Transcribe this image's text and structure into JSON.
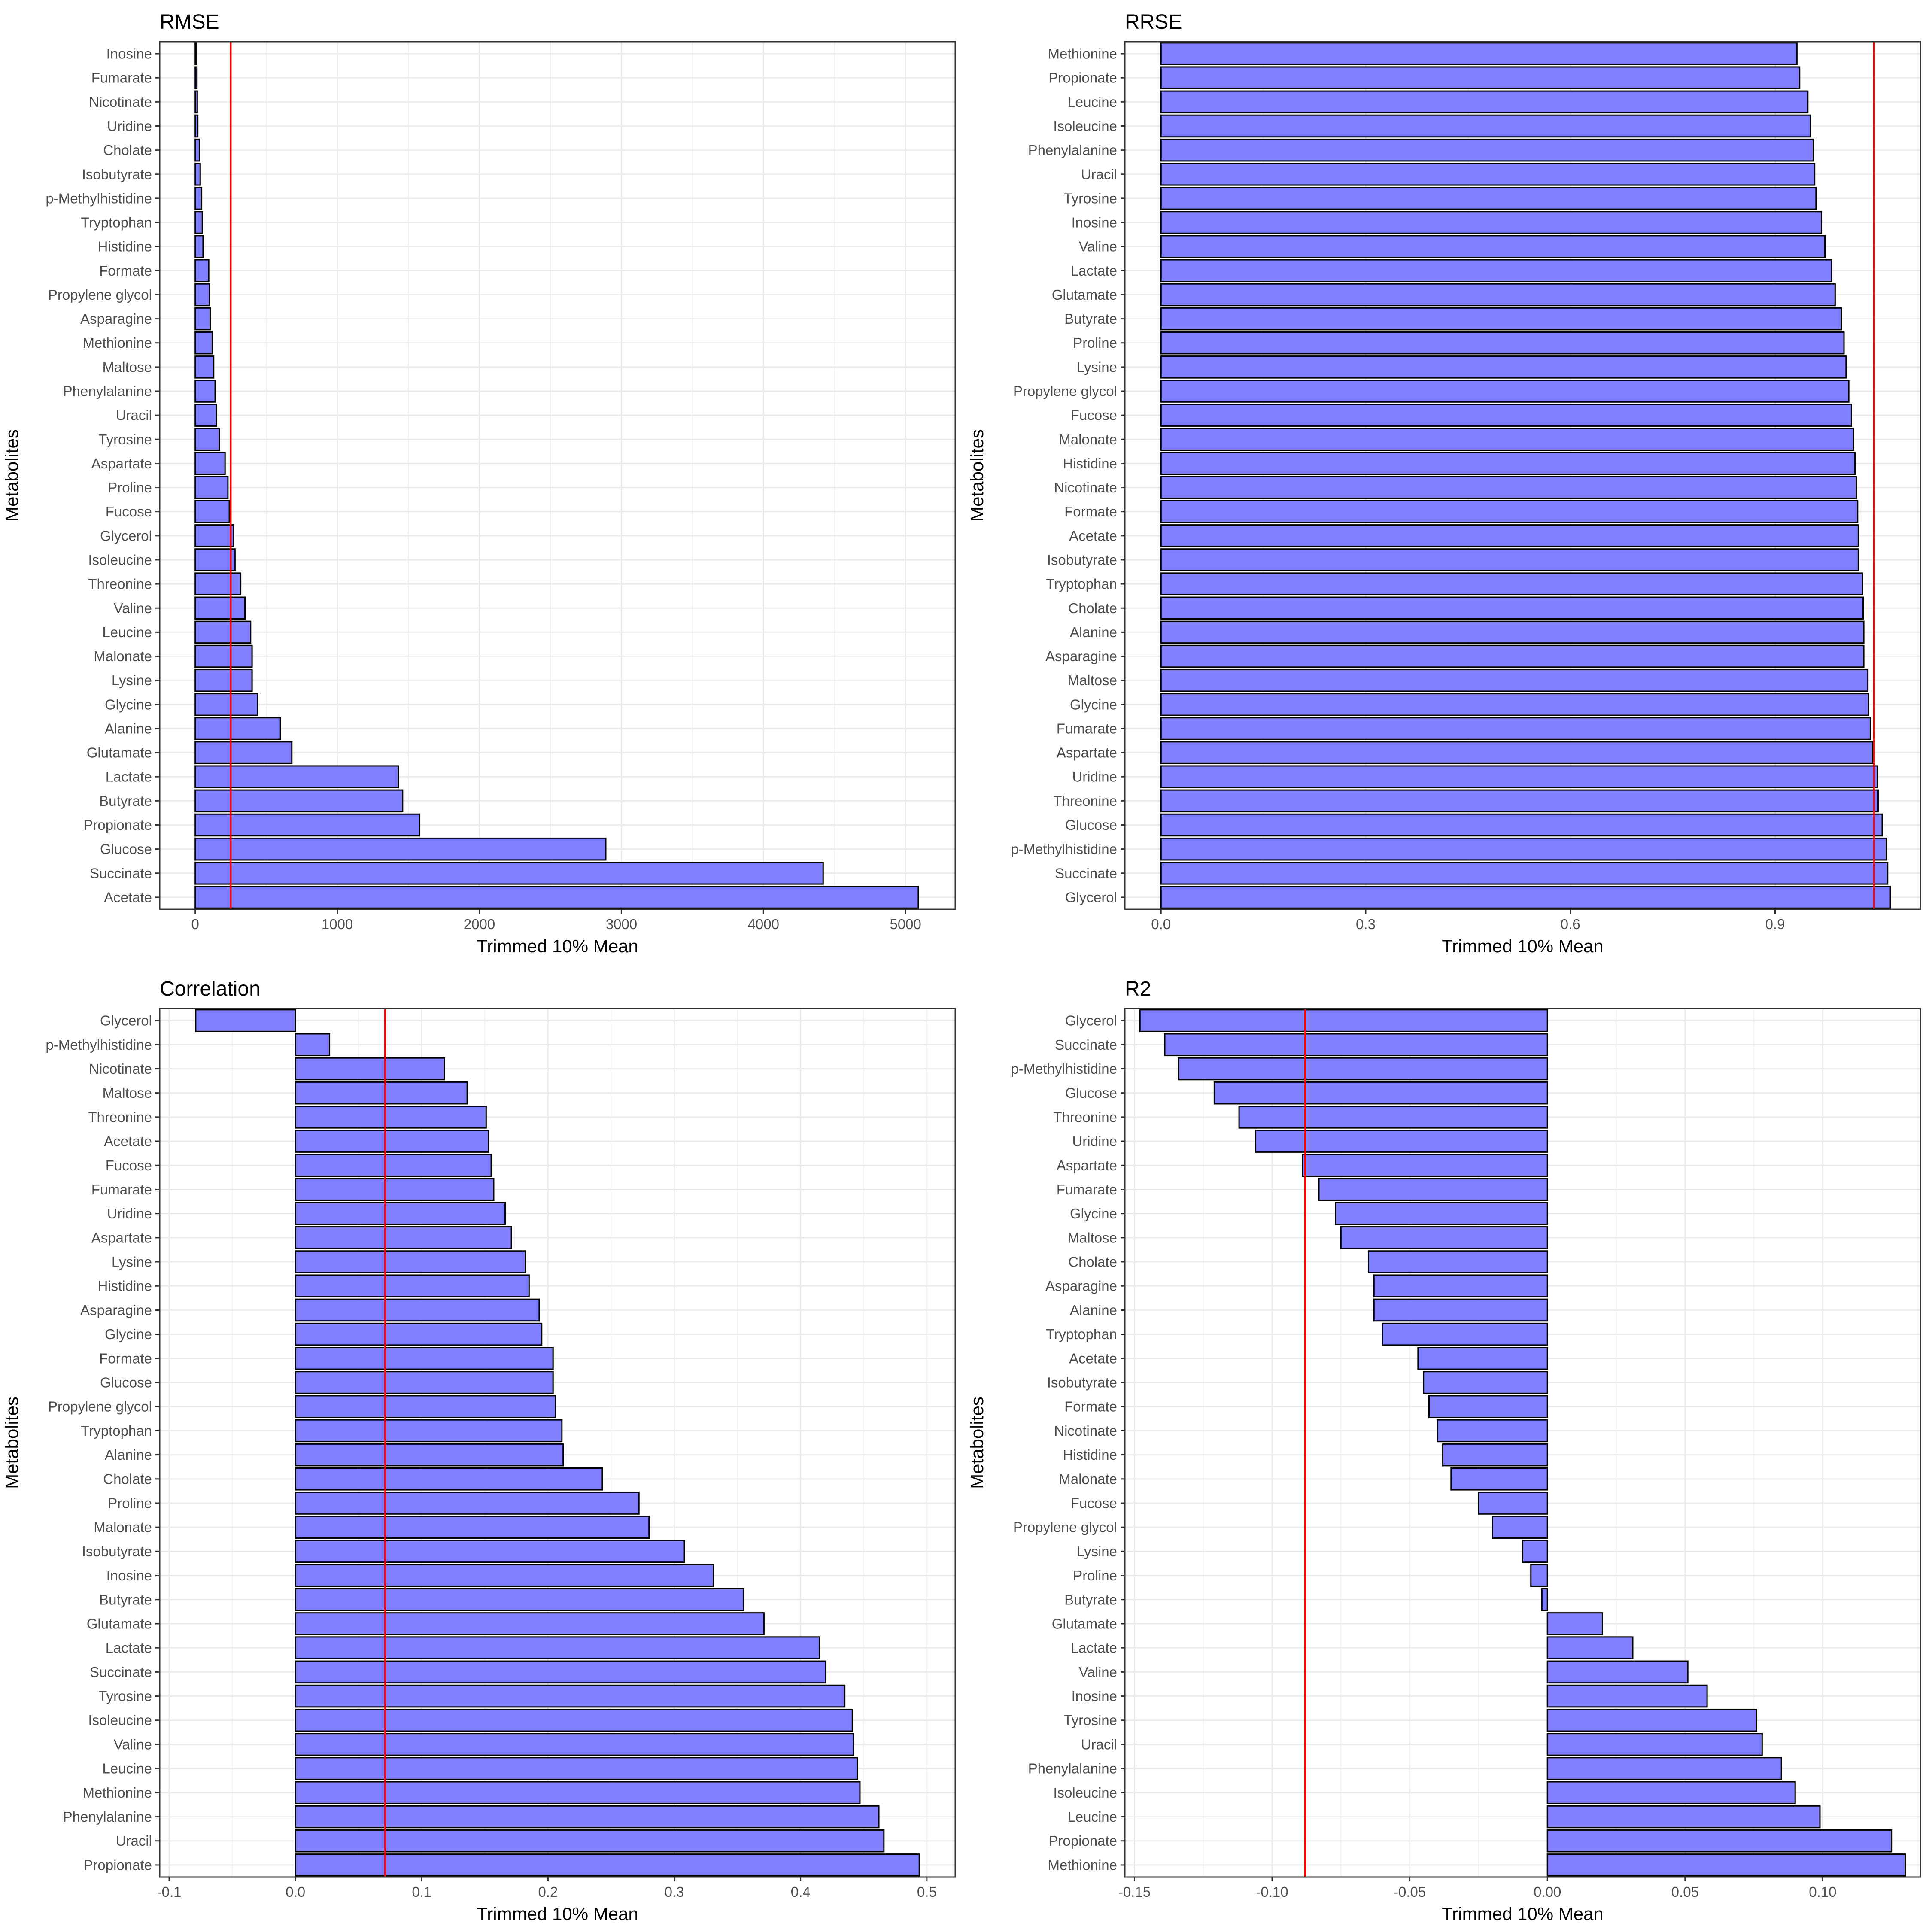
{
  "chart_data": [
    {
      "type": "bar",
      "orientation": "horizontal",
      "title": "RMSE",
      "xlabel": "Trimmed 10% Mean",
      "ylabel": "Metabolites",
      "xlim": [
        -250,
        5350
      ],
      "xticks": [
        0,
        1000,
        2000,
        3000,
        4000,
        5000
      ],
      "xtick_labels": [
        "0",
        "1000",
        "2000",
        "3000",
        "4000",
        "5000"
      ],
      "reference_line": 250,
      "categories": [
        "Inosine",
        "Fumarate",
        "Nicotinate",
        "Uridine",
        "Cholate",
        "Isobutyrate",
        "p-Methylhistidine",
        "Tryptophan",
        "Histidine",
        "Formate",
        "Propylene glycol",
        "Asparagine",
        "Methionine",
        "Maltose",
        "Phenylalanine",
        "Uracil",
        "Tyrosine",
        "Aspartate",
        "Proline",
        "Fucose",
        "Glycerol",
        "Isoleucine",
        "Threonine",
        "Valine",
        "Leucine",
        "Malonate",
        "Lysine",
        "Glycine",
        "Alanine",
        "Glutamate",
        "Lactate",
        "Butyrate",
        "Propionate",
        "Glucose",
        "Succinate",
        "Acetate"
      ],
      "values": [
        10,
        12,
        14,
        18,
        30,
        35,
        45,
        50,
        55,
        95,
        100,
        105,
        120,
        130,
        140,
        150,
        170,
        210,
        230,
        240,
        270,
        280,
        320,
        350,
        390,
        400,
        400,
        440,
        600,
        680,
        1430,
        1460,
        1580,
        2890,
        4420,
        5090
      ],
      "grid": true,
      "bar_color": "#7f7fff",
      "reference_color": "#ff0000"
    },
    {
      "type": "bar",
      "orientation": "horizontal",
      "title": "RRSE",
      "xlabel": "Trimmed 10% Mean",
      "ylabel": "Metabolites",
      "xlim": [
        -0.053,
        1.113
      ],
      "xticks": [
        0.0,
        0.3,
        0.6,
        0.9
      ],
      "xtick_labels": [
        "0.0",
        "0.3",
        "0.6",
        "0.9"
      ],
      "reference_line": 1.045,
      "categories": [
        "Methionine",
        "Propionate",
        "Leucine",
        "Isoleucine",
        "Phenylalanine",
        "Uracil",
        "Tyrosine",
        "Inosine",
        "Valine",
        "Lactate",
        "Glutamate",
        "Butyrate",
        "Proline",
        "Lysine",
        "Propylene glycol",
        "Fucose",
        "Malonate",
        "Histidine",
        "Nicotinate",
        "Formate",
        "Acetate",
        "Isobutyrate",
        "Tryptophan",
        "Cholate",
        "Alanine",
        "Asparagine",
        "Maltose",
        "Glycine",
        "Fumarate",
        "Aspartate",
        "Uridine",
        "Threonine",
        "Glucose",
        "p-Methylhistidine",
        "Succinate",
        "Glycerol"
      ],
      "values": [
        0.932,
        0.936,
        0.948,
        0.952,
        0.956,
        0.958,
        0.96,
        0.968,
        0.973,
        0.983,
        0.988,
        0.997,
        1.001,
        1.004,
        1.008,
        1.012,
        1.015,
        1.017,
        1.019,
        1.021,
        1.022,
        1.022,
        1.028,
        1.029,
        1.03,
        1.03,
        1.036,
        1.037,
        1.04,
        1.043,
        1.05,
        1.051,
        1.057,
        1.063,
        1.065,
        1.069
      ],
      "grid": true,
      "bar_color": "#7f7fff",
      "reference_color": "#ff0000"
    },
    {
      "type": "bar",
      "orientation": "horizontal",
      "title": "Correlation",
      "xlabel": "Trimmed 10% Mean",
      "ylabel": "Metabolites",
      "xlim": [
        -0.1075,
        0.5225
      ],
      "xticks": [
        -0.1,
        0.0,
        0.1,
        0.2,
        0.3,
        0.4,
        0.5
      ],
      "xtick_labels": [
        "-0.1",
        "0.0",
        "0.1",
        "0.2",
        "0.3",
        "0.4",
        "0.5"
      ],
      "reference_line": 0.071,
      "categories": [
        "Glycerol",
        "p-Methylhistidine",
        "Nicotinate",
        "Maltose",
        "Threonine",
        "Acetate",
        "Fucose",
        "Fumarate",
        "Uridine",
        "Aspartate",
        "Lysine",
        "Histidine",
        "Asparagine",
        "Glycine",
        "Formate",
        "Glucose",
        "Propylene glycol",
        "Tryptophan",
        "Alanine",
        "Cholate",
        "Proline",
        "Malonate",
        "Isobutyrate",
        "Inosine",
        "Butyrate",
        "Glutamate",
        "Lactate",
        "Succinate",
        "Tyrosine",
        "Isoleucine",
        "Valine",
        "Leucine",
        "Methionine",
        "Phenylalanine",
        "Uracil",
        "Propionate"
      ],
      "values": [
        -0.079,
        0.027,
        0.118,
        0.136,
        0.151,
        0.153,
        0.155,
        0.157,
        0.166,
        0.171,
        0.182,
        0.185,
        0.193,
        0.195,
        0.204,
        0.204,
        0.206,
        0.211,
        0.212,
        0.243,
        0.272,
        0.28,
        0.308,
        0.331,
        0.355,
        0.371,
        0.415,
        0.42,
        0.435,
        0.441,
        0.442,
        0.445,
        0.447,
        0.462,
        0.466,
        0.494
      ],
      "grid": true,
      "bar_color": "#7f7fff",
      "reference_color": "#ff0000"
    },
    {
      "type": "bar",
      "orientation": "horizontal",
      "title": "R2",
      "xlabel": "Trimmed 10% Mean",
      "ylabel": "Metabolites",
      "xlim": [
        -0.1535,
        0.1355
      ],
      "xticks": [
        -0.15,
        -0.1,
        -0.05,
        0.0,
        0.05,
        0.1
      ],
      "xtick_labels": [
        "-0.15",
        "-0.10",
        "-0.05",
        "0.00",
        "0.05",
        "0.10"
      ],
      "reference_line": -0.088,
      "categories": [
        "Glycerol",
        "Succinate",
        "p-Methylhistidine",
        "Glucose",
        "Threonine",
        "Uridine",
        "Aspartate",
        "Fumarate",
        "Glycine",
        "Maltose",
        "Cholate",
        "Asparagine",
        "Alanine",
        "Tryptophan",
        "Acetate",
        "Isobutyrate",
        "Formate",
        "Nicotinate",
        "Histidine",
        "Malonate",
        "Fucose",
        "Propylene glycol",
        "Lysine",
        "Proline",
        "Butyrate",
        "Glutamate",
        "Lactate",
        "Valine",
        "Inosine",
        "Tyrosine",
        "Uracil",
        "Phenylalanine",
        "Isoleucine",
        "Leucine",
        "Propionate",
        "Methionine"
      ],
      "values": [
        -0.148,
        -0.139,
        -0.134,
        -0.121,
        -0.112,
        -0.106,
        -0.089,
        -0.083,
        -0.077,
        -0.075,
        -0.065,
        -0.063,
        -0.063,
        -0.06,
        -0.047,
        -0.045,
        -0.043,
        -0.04,
        -0.038,
        -0.035,
        -0.025,
        -0.02,
        -0.009,
        -0.006,
        -0.002,
        0.02,
        0.031,
        0.051,
        0.058,
        0.076,
        0.078,
        0.085,
        0.09,
        0.099,
        0.125,
        0.13
      ],
      "grid": true,
      "bar_color": "#7f7fff",
      "reference_color": "#ff0000"
    }
  ]
}
